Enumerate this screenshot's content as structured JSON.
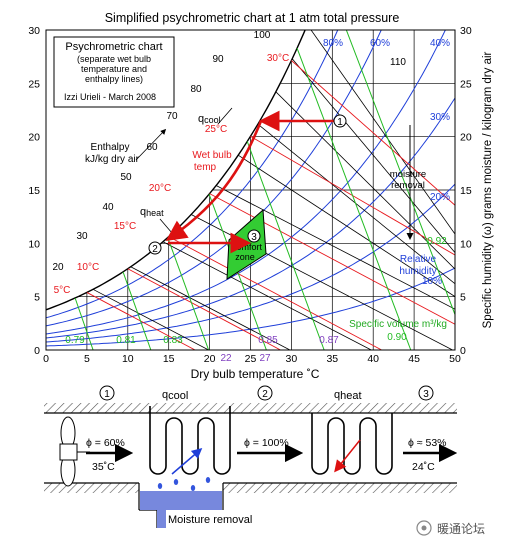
{
  "chart": {
    "title": "Simplified psychrometric chart at 1 atm total pressure",
    "xlabel": "Dry bulb temperature ˚C",
    "ylabel": "Specific humidity (ω) grams moisture / kilogram dry air",
    "x_ticks": [
      "0",
      "5",
      "10",
      "15",
      "20",
      "25",
      "30",
      "35",
      "40",
      "45",
      "50"
    ],
    "y_ticks": [
      "0",
      "5",
      "10",
      "15",
      "20",
      "25",
      "30"
    ],
    "infobox": {
      "title": "Psychrometric chart",
      "line1": "(separate wet bulb",
      "line2": "temperature and",
      "line3": "enthalpy lines)",
      "author": "Izzi Urieli - March 2008"
    },
    "enthalpy_label_1": "Enthalpy",
    "enthalpy_label_2": "kJ/kg dry air",
    "enthalpy_values": [
      "20",
      "30",
      "40",
      "50",
      "60",
      "70",
      "80",
      "90",
      "100",
      "110"
    ],
    "wetbulb_label_1": "Wet bulb",
    "wetbulb_label_2": "temp",
    "wetbulb_values": [
      "5°C",
      "10°C",
      "15°C",
      "20°C",
      "25°C",
      "30°C"
    ],
    "rh_values": [
      "80%",
      "60%",
      "40%",
      "30%",
      "20%",
      "10%"
    ],
    "rh_label_1": "Relative",
    "rh_label_2": "humidity",
    "sv_label": "Specific volume m³/kg",
    "sv_values": [
      "0.79",
      "0.81",
      "0.83",
      "0.85",
      "0.87",
      "0.90",
      "0.92"
    ],
    "qcool": "q",
    "qcool_sub": "cool",
    "qheat": "q",
    "qheat_sub": "heat",
    "moisture_label_1": "moisture",
    "moisture_label_2": "removal",
    "comfort_label_1": "comfort",
    "comfort_label_2": "zone",
    "state_labels": [
      "1",
      "2",
      "3"
    ],
    "axis_marks": [
      "22",
      "27"
    ],
    "colors": {
      "enthalpy": "#000000",
      "wetbulb": "#e8191e",
      "rh": "#1f3fd9",
      "sv": "#22bb22",
      "process": "#dd1111",
      "comfort": "#33cc33",
      "purple": "#8040c0"
    }
  },
  "process": {
    "state1_num": "1",
    "state1_phi": "ϕ = 60%",
    "state1_temp": "35˚C",
    "qcool": "q",
    "qcool_sub": "cool",
    "state2_num": "2",
    "state2_phi": "ϕ = 100%",
    "qheat": "q",
    "qheat_sub": "heat",
    "state3_num": "3",
    "state3_phi": "ϕ ≈ 53%",
    "state3_temp": "24˚C",
    "moisture_removal": "Moisture removal"
  },
  "watermark": "暖通论坛"
}
